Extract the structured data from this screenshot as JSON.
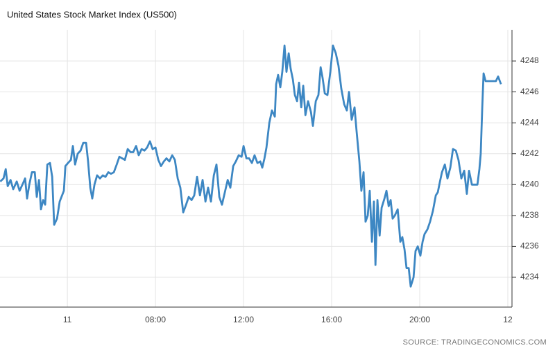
{
  "chart_data": {
    "type": "line",
    "title": "United States Stock Market Index (US500)",
    "source": "SOURCE: TRADINGECONOMICS.COM",
    "color": "#3d87c3",
    "grid": true,
    "xlim": [
      0.94,
      24.19
    ],
    "ylim": [
      4232.07,
      4250.02
    ],
    "xticks": [
      {
        "value": 4,
        "label": "11"
      },
      {
        "value": 8,
        "label": "08:00"
      },
      {
        "value": 12,
        "label": "12:00"
      },
      {
        "value": 16,
        "label": "16:00"
      },
      {
        "value": 20,
        "label": "20:00"
      },
      {
        "value": 24,
        "label": "12"
      }
    ],
    "yticks": [
      4234,
      4236,
      4238,
      4240,
      4242,
      4244,
      4246,
      4248
    ],
    "x": [
      0.95,
      1.1,
      1.2,
      1.29,
      1.42,
      1.54,
      1.7,
      1.83,
      1.99,
      2.08,
      2.17,
      2.27,
      2.39,
      2.52,
      2.61,
      2.71,
      2.8,
      2.9,
      2.99,
      3.09,
      3.21,
      3.31,
      3.4,
      3.53,
      3.65,
      3.84,
      3.91,
      4.03,
      4.16,
      4.25,
      4.35,
      4.47,
      4.6,
      4.72,
      4.85,
      4.94,
      5.04,
      5.13,
      5.23,
      5.35,
      5.48,
      5.61,
      5.73,
      5.86,
      5.98,
      6.11,
      6.24,
      6.36,
      6.49,
      6.61,
      6.74,
      6.87,
      6.99,
      7.12,
      7.24,
      7.37,
      7.5,
      7.62,
      7.75,
      7.87,
      8.0,
      8.13,
      8.25,
      8.38,
      8.5,
      8.63,
      8.76,
      8.88,
      9.01,
      9.13,
      9.26,
      9.39,
      9.51,
      9.64,
      9.76,
      9.89,
      10.02,
      10.14,
      10.27,
      10.39,
      10.52,
      10.65,
      10.77,
      10.9,
      11.02,
      11.15,
      11.28,
      11.4,
      11.53,
      11.65,
      11.78,
      11.91,
      12.0,
      12.13,
      12.25,
      12.38,
      12.5,
      12.63,
      12.76,
      12.85,
      12.95,
      13.04,
      13.17,
      13.29,
      13.42,
      13.48,
      13.57,
      13.67,
      13.76,
      13.86,
      13.95,
      14.05,
      14.14,
      14.24,
      14.33,
      14.43,
      14.52,
      14.62,
      14.71,
      14.81,
      14.93,
      15.06,
      15.15,
      15.28,
      15.4,
      15.5,
      15.59,
      15.69,
      15.81,
      15.94,
      16.06,
      16.19,
      16.31,
      16.44,
      16.57,
      16.69,
      16.79,
      16.91,
      17.04,
      17.13,
      17.26,
      17.35,
      17.45,
      17.54,
      17.64,
      17.73,
      17.83,
      17.92,
      17.99,
      18.08,
      18.18,
      18.27,
      18.4,
      18.49,
      18.59,
      18.68,
      18.77,
      18.87,
      19.0,
      19.12,
      19.21,
      19.31,
      19.4,
      19.5,
      19.59,
      19.72,
      19.81,
      19.91,
      20.03,
      20.13,
      20.22,
      20.35,
      20.47,
      20.6,
      20.73,
      20.82,
      20.92,
      21.01,
      21.14,
      21.26,
      21.39,
      21.51,
      21.64,
      21.76,
      21.89,
      22.02,
      22.14,
      22.24,
      22.37,
      22.49,
      22.62,
      22.71,
      22.77,
      22.84,
      22.9,
      22.99,
      23.15,
      23.31,
      23.46,
      23.56,
      23.69
    ],
    "values": [
      4240.2,
      4240.4,
      4241.0,
      4239.9,
      4240.3,
      4239.7,
      4240.2,
      4239.6,
      4240.1,
      4240.4,
      4239.1,
      4240.0,
      4240.8,
      4240.8,
      4239.2,
      4240.3,
      4238.4,
      4239.0,
      4238.7,
      4241.3,
      4241.4,
      4240.5,
      4237.4,
      4237.8,
      4238.9,
      4239.6,
      4241.2,
      4241.4,
      4241.6,
      4242.5,
      4241.3,
      4242.0,
      4242.2,
      4242.7,
      4242.7,
      4241.5,
      4239.8,
      4239.1,
      4240.0,
      4240.6,
      4240.4,
      4240.6,
      4240.5,
      4240.8,
      4240.7,
      4240.8,
      4241.3,
      4241.8,
      4241.7,
      4241.6,
      4242.3,
      4242.1,
      4242.1,
      4242.5,
      4241.9,
      4242.3,
      4242.2,
      4242.4,
      4242.8,
      4242.3,
      4242.4,
      4241.6,
      4241.2,
      4241.5,
      4241.7,
      4241.5,
      4241.9,
      4241.6,
      4240.4,
      4239.8,
      4238.2,
      4238.7,
      4239.2,
      4239.0,
      4239.3,
      4240.5,
      4239.3,
      4240.3,
      4238.9,
      4239.8,
      4238.9,
      4240.6,
      4241.3,
      4239.2,
      4238.7,
      4239.5,
      4240.3,
      4239.8,
      4241.2,
      4241.5,
      4241.9,
      4241.8,
      4242.5,
      4241.7,
      4241.7,
      4241.4,
      4241.9,
      4241.4,
      4241.5,
      4241.1,
      4241.7,
      4242.4,
      4244.0,
      4244.8,
      4244.4,
      4246.5,
      4247.1,
      4246.3,
      4247.3,
      4249.0,
      4247.3,
      4248.5,
      4247.5,
      4246.8,
      4245.8,
      4245.4,
      4246.6,
      4245.0,
      4246.4,
      4244.5,
      4245.4,
      4244.7,
      4243.8,
      4245.4,
      4245.8,
      4247.6,
      4246.9,
      4245.9,
      4245.8,
      4247.3,
      4249.0,
      4248.5,
      4247.7,
      4246.2,
      4245.2,
      4244.8,
      4246.0,
      4244.2,
      4245.0,
      4243.5,
      4241.5,
      4239.6,
      4240.8,
      4237.6,
      4238.0,
      4239.6,
      4236.3,
      4238.9,
      4234.8,
      4239.0,
      4236.7,
      4238.5,
      4239.1,
      4239.6,
      4238.6,
      4239.0,
      4237.8,
      4238.0,
      4238.4,
      4236.3,
      4236.6,
      4235.8,
      4234.6,
      4234.6,
      4233.4,
      4234.0,
      4235.7,
      4236.0,
      4235.4,
      4236.3,
      4236.8,
      4237.1,
      4237.6,
      4238.3,
      4239.3,
      4239.5,
      4240.2,
      4240.8,
      4241.3,
      4240.4,
      4241.1,
      4242.3,
      4242.2,
      4241.6,
      4240.4,
      4240.9,
      4239.4,
      4240.9,
      4240.0,
      4240.0,
      4240.0,
      4241.0,
      4242.0,
      4245.0,
      4247.2,
      4246.7,
      4246.7,
      4246.7,
      4246.7,
      4247.0,
      4246.5
    ]
  }
}
